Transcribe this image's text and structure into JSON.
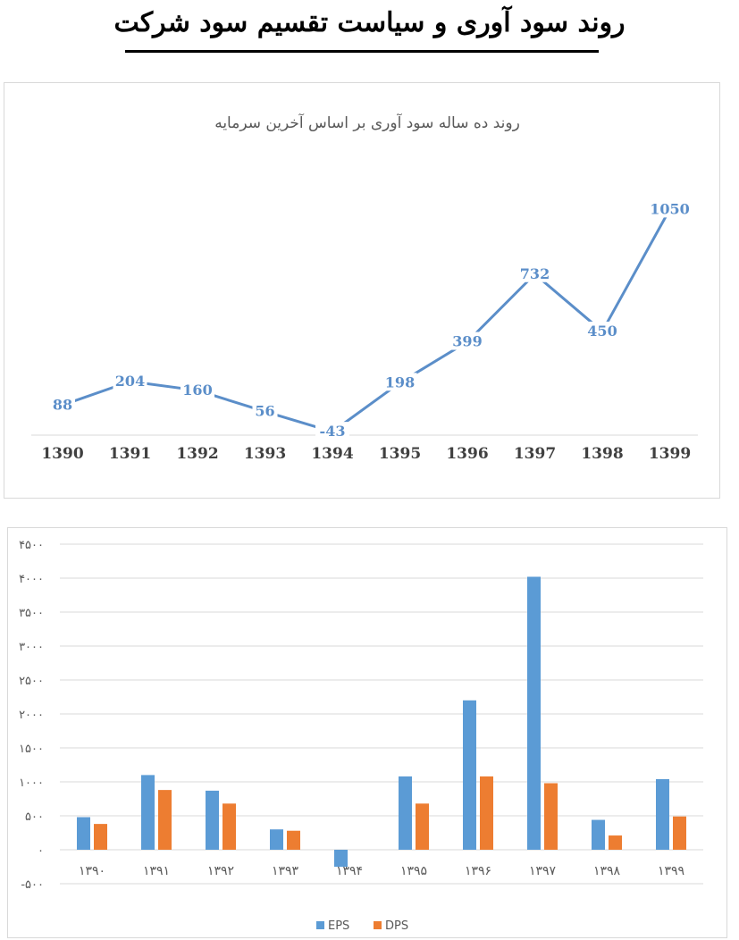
{
  "page": {
    "title": "روند سود آوری و سیاست تقسیم سود شرکت"
  },
  "chart_data": [
    {
      "type": "line",
      "title": "روند ده ساله سود آوری بر اساس آخرین سرمایه",
      "categories": [
        "1390",
        "1391",
        "1392",
        "1393",
        "1394",
        "1395",
        "1396",
        "1397",
        "1398",
        "1399"
      ],
      "series": [
        {
          "values": [
            88,
            204,
            160,
            56,
            -43,
            198,
            399,
            732,
            450,
            1050
          ],
          "color": "#5b8ec9"
        }
      ],
      "data_labels": [
        "88",
        "204",
        "160",
        "56",
        "-43",
        "198",
        "399",
        "732",
        "450",
        "1050"
      ],
      "ylim": [
        -60,
        1100
      ],
      "grid": false,
      "legend": "none"
    },
    {
      "type": "bar",
      "categories": [
        "۱۳۹۰",
        "۱۳۹۱",
        "۱۳۹۲",
        "۱۳۹۳",
        "۱۳۹۴",
        "۱۳۹۵",
        "۱۳۹۶",
        "۱۳۹۷",
        "۱۳۹۸",
        "۱۳۹۹"
      ],
      "series": [
        {
          "name": "EPS",
          "values": [
            480,
            1100,
            870,
            300,
            -250,
            1080,
            2200,
            4020,
            440,
            1040
          ],
          "color": "#5b9bd5"
        },
        {
          "name": "DPS",
          "values": [
            380,
            880,
            680,
            280,
            0,
            680,
            1080,
            980,
            210,
            490
          ],
          "color": "#ed7d31"
        }
      ],
      "yticks": [
        -500,
        0,
        500,
        1000,
        1500,
        2000,
        2500,
        3000,
        3500,
        4000,
        4500
      ],
      "ytick_labels": [
        "-۵۰۰",
        "۰",
        "۵۰۰",
        "۱۰۰۰",
        "۱۵۰۰",
        "۲۰۰۰",
        "۲۵۰۰",
        "۳۰۰۰",
        "۳۵۰۰",
        "۴۰۰۰",
        "۴۵۰۰"
      ],
      "ylim": [
        -500,
        4500
      ],
      "grid": true,
      "legend": "bottom-center"
    }
  ]
}
